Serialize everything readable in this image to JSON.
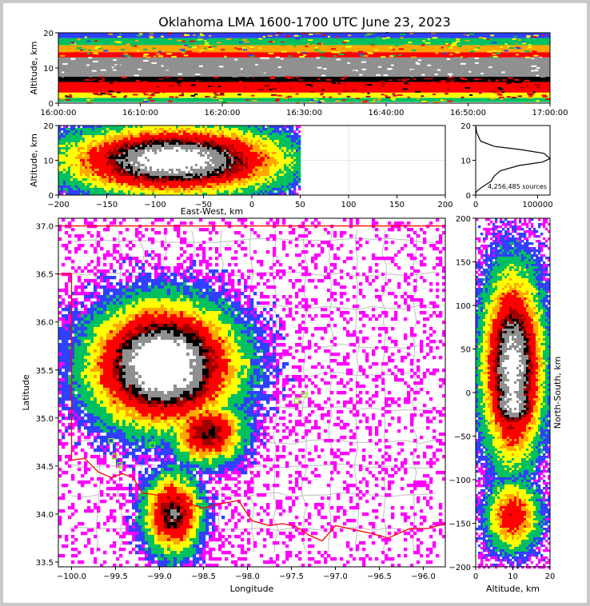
{
  "title": "Oklahoma LMA 1600-1700 UTC June 23, 2023",
  "chart_data": [
    {
      "panel": "time-height",
      "type": "heatmap",
      "ylabel": "Altitude, km",
      "ylim": [
        0,
        20
      ],
      "yticks": [
        "0",
        "10",
        "20"
      ],
      "xlim": [
        "16:00:00",
        "17:00:00"
      ],
      "xticks": [
        "16:00:00",
        "16:10:00",
        "16:20:00",
        "16:30:00",
        "16:40:00",
        "16:50:00",
        "17:00:00"
      ],
      "bands_km": [
        {
          "from": 0.3,
          "to": 1.5,
          "level": "green"
        },
        {
          "from": 1.5,
          "to": 3.0,
          "level": "yellow"
        },
        {
          "from": 3.0,
          "to": 6.0,
          "level": "red"
        },
        {
          "from": 6.0,
          "to": 7.5,
          "level": "black"
        },
        {
          "from": 7.5,
          "to": 13.0,
          "level": "gray"
        },
        {
          "from": 13.0,
          "to": 14.5,
          "level": "red"
        },
        {
          "from": 14.5,
          "to": 16.5,
          "level": "orange"
        },
        {
          "from": 16.5,
          "to": 18.5,
          "level": "green"
        },
        {
          "from": 18.5,
          "to": 20.0,
          "level": "blue"
        }
      ]
    },
    {
      "panel": "east-west vs altitude",
      "type": "heatmap",
      "xlabel": "East-West, km",
      "ylabel": "Altitude, km",
      "xlim": [
        -200,
        200
      ],
      "ylim": [
        0,
        20
      ],
      "xticks": [
        "−200",
        "−150",
        "−100",
        "−50",
        "0",
        "50",
        "100",
        "150",
        "200"
      ],
      "yticks": [
        "0",
        "10",
        "20"
      ],
      "core": {
        "x": -80,
        "y": 10
      }
    },
    {
      "panel": "altitude histogram",
      "type": "line",
      "annotation": "4,256,485 sources",
      "xlim": [
        0,
        120000
      ],
      "ylim": [
        0,
        20
      ],
      "xticks": [
        "0",
        "100000"
      ],
      "yticks": [
        "0",
        "10",
        "20"
      ],
      "x": [
        100,
        1500,
        8000,
        30000,
        75000,
        110000,
        120000,
        108000,
        70000,
        40000,
        30000,
        25000,
        8000,
        1000,
        0
      ],
      "y": [
        20.0,
        18.0,
        15.5,
        14.0,
        13.0,
        12.0,
        10.5,
        9.5,
        8.5,
        7.0,
        5.5,
        4.0,
        2.0,
        1.0,
        0.3
      ]
    },
    {
      "panel": "plan view",
      "type": "scatter",
      "xlabel": "Longitude",
      "ylabel": "Latitude",
      "xlim": [
        -100.15,
        -95.75
      ],
      "ylim": [
        33.45,
        37.08
      ],
      "xticks": [
        "−100.0",
        "−99.5",
        "−99.0",
        "−98.5",
        "−98.0",
        "−97.5",
        "−97.0",
        "−96.5",
        "−96.0"
      ],
      "yticks": [
        "33.5",
        "34.0",
        "34.5",
        "35.0",
        "35.5",
        "36.0",
        "36.5",
        "37.0"
      ],
      "stations": [
        {
          "lon": -99.55,
          "lat": 34.76
        },
        {
          "lon": -99.51,
          "lat": 34.6
        },
        {
          "lon": -99.45,
          "lat": 34.51
        },
        {
          "lon": -99.08,
          "lat": 34.72
        },
        {
          "lon": -97.44,
          "lat": 35.18
        },
        {
          "lon": -97.35,
          "lat": 35.24
        }
      ]
    },
    {
      "panel": "north-south vs altitude",
      "type": "heatmap",
      "xlabel": "Altitude, km",
      "ylabel": "North-South, km",
      "xlim": [
        0,
        20
      ],
      "ylim": [
        -200,
        200
      ],
      "xticks": [
        "0",
        "10",
        "20"
      ],
      "yticks": [
        "−200",
        "−150",
        "−100",
        "−50",
        "0",
        "50",
        "100",
        "150",
        "200"
      ]
    }
  ],
  "colors": {
    "blue": "#3040ff",
    "green": "#00c060",
    "yellow": "#ffff00",
    "orange": "#ffa500",
    "red": "#ff0000",
    "darkred": "#a00000",
    "black": "#000000",
    "gray": "#909090",
    "white": "#ffffff",
    "magenta": "#ff00ff",
    "border": "#ff0000",
    "county": "#bdbdbd",
    "station": "#7cfc00"
  }
}
